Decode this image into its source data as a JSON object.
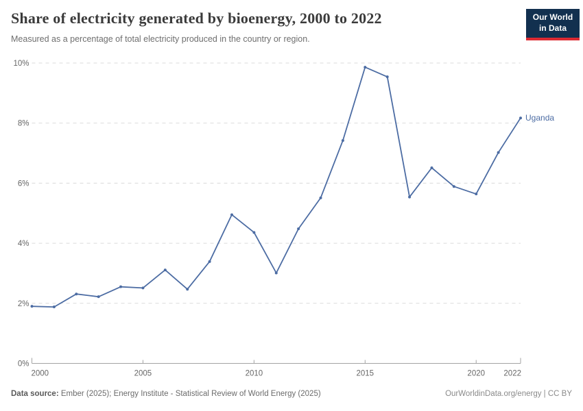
{
  "header": {
    "title": "Share of electricity generated by bioenergy, 2000 to 2022",
    "subtitle": "Measured as a percentage of total electricity produced in the country or region."
  },
  "logo": {
    "line1": "Our World",
    "line2": "in Data"
  },
  "footer": {
    "datasource_label": "Data source:",
    "datasource_text": " Ember (2025); Energy Institute - Statistical Review of World Energy (2025)",
    "credit": "OurWorldinData.org/energy | CC BY"
  },
  "chart_data": {
    "type": "line",
    "title": "Share of electricity generated by bioenergy, 2000 to 2022",
    "x": [
      2000,
      2001,
      2002,
      2003,
      2004,
      2005,
      2006,
      2007,
      2008,
      2009,
      2010,
      2011,
      2012,
      2013,
      2014,
      2015,
      2016,
      2017,
      2018,
      2019,
      2020,
      2021,
      2022
    ],
    "series": [
      {
        "name": "Uganda",
        "color": "#4C6CA3",
        "values": [
          1.9,
          1.88,
          2.31,
          2.22,
          2.55,
          2.51,
          3.11,
          2.47,
          3.39,
          4.95,
          4.36,
          3.01,
          4.48,
          5.51,
          7.42,
          9.86,
          9.54,
          5.54,
          6.51,
          5.89,
          5.64,
          7.02,
          8.17
        ]
      }
    ],
    "xlabel": "",
    "ylabel": "",
    "ylim": [
      0,
      10
    ],
    "yticks": [
      {
        "value": 0,
        "label": "0%"
      },
      {
        "value": 2,
        "label": "2%"
      },
      {
        "value": 4,
        "label": "4%"
      },
      {
        "value": 6,
        "label": "6%"
      },
      {
        "value": 8,
        "label": "8%"
      },
      {
        "value": 10,
        "label": "10%"
      }
    ],
    "xticks": [
      {
        "value": 2000,
        "label": "2000"
      },
      {
        "value": 2005,
        "label": "2005"
      },
      {
        "value": 2010,
        "label": "2010"
      },
      {
        "value": 2015,
        "label": "2015"
      },
      {
        "value": 2020,
        "label": "2020"
      },
      {
        "value": 2022,
        "label": "2022"
      }
    ],
    "grid": "horizontal-dashed",
    "legend": "end-of-line-label",
    "colors": {
      "gridline": "#dadada",
      "axis": "#a3a3a3",
      "tick_label": "#666666"
    }
  }
}
